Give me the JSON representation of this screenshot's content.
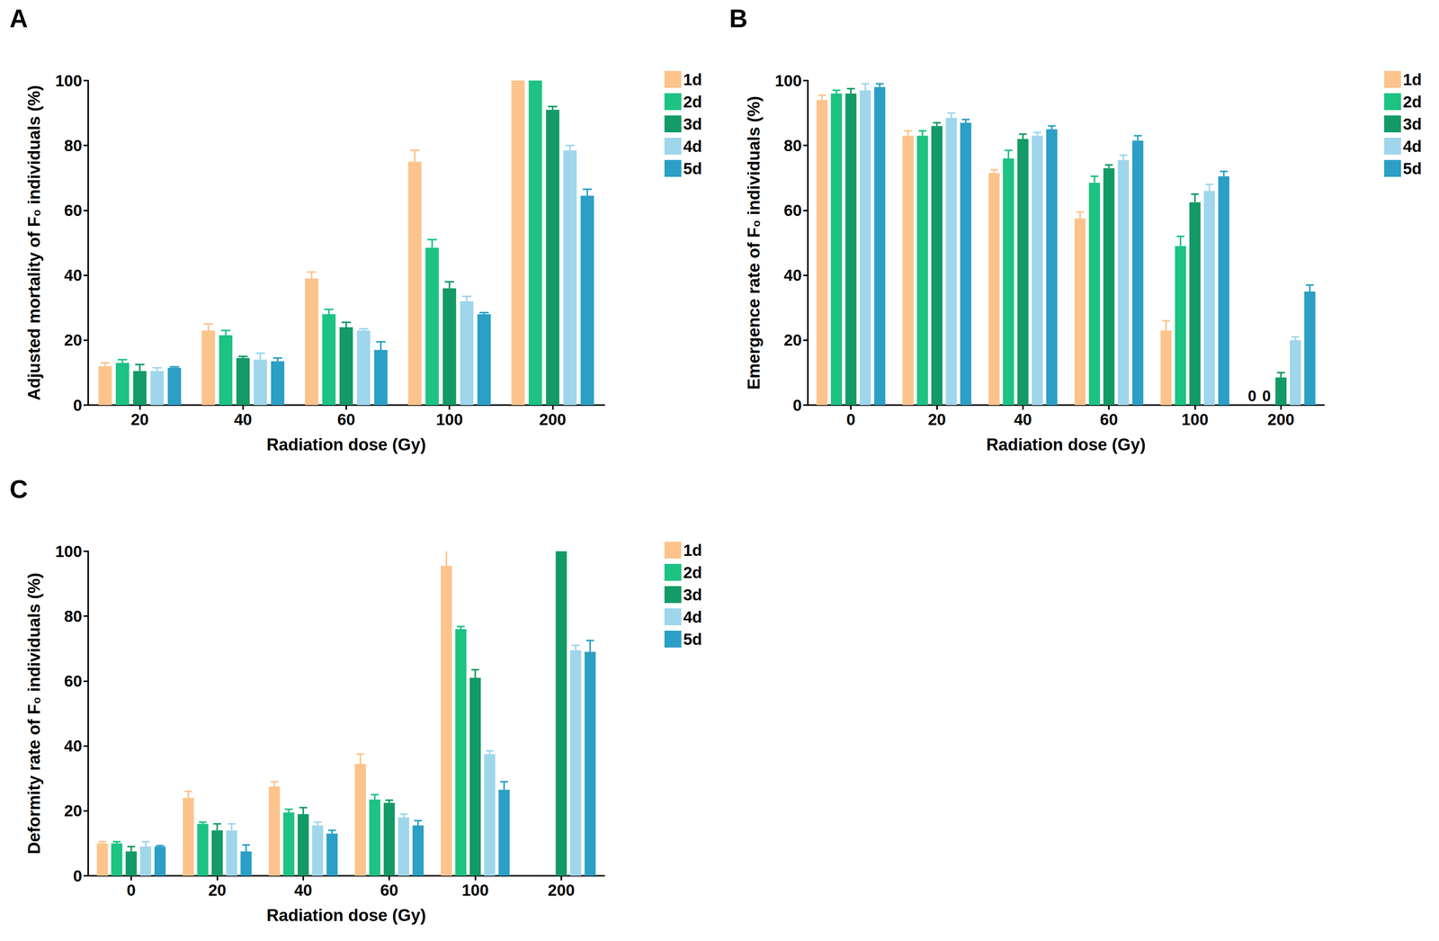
{
  "chart_data": [
    {
      "type": "bar",
      "title": "A",
      "x_label": "Radiation dose (Gy)",
      "y_label": "Adjusted mortality of F₀ individuals (%)",
      "categories": [
        "20",
        "40",
        "60",
        "100",
        "200"
      ],
      "series": [
        {
          "name": "1d",
          "color": "#fcc48c",
          "values": [
            12,
            23,
            39,
            75,
            100
          ],
          "errors": [
            1,
            2,
            2,
            3.5,
            0
          ]
        },
        {
          "name": "2d",
          "color": "#1cc383",
          "values": [
            13,
            21.5,
            28,
            48.5,
            100
          ],
          "errors": [
            1,
            1.5,
            1.5,
            2.5,
            0
          ]
        },
        {
          "name": "3d",
          "color": "#139a66",
          "values": [
            10.5,
            14.5,
            24,
            36,
            91
          ],
          "errors": [
            2,
            0.5,
            1.5,
            2,
            1
          ]
        },
        {
          "name": "4d",
          "color": "#9fd6ec",
          "values": [
            10.5,
            14,
            23,
            32,
            78.5
          ],
          "errors": [
            1,
            2,
            0.5,
            1.5,
            1.5
          ]
        },
        {
          "name": "5d",
          "color": "#2b9fc6",
          "values": [
            11.5,
            13.5,
            17,
            28,
            64.5
          ],
          "errors": [
            0.3,
            1,
            2.5,
            0.5,
            2
          ]
        }
      ],
      "ylim": [
        0,
        100
      ],
      "yticks": [
        0,
        20,
        40,
        60,
        80,
        100
      ],
      "grid": false,
      "legend": "upper right"
    },
    {
      "type": "bar",
      "title": "B",
      "x_label": "Radiation dose (Gy)",
      "y_label": "Emergence rate of F₀ individuals (%)",
      "categories": [
        "0",
        "20",
        "40",
        "60",
        "100",
        "200"
      ],
      "series": [
        {
          "name": "1d",
          "color": "#fcc48c",
          "values": [
            94,
            83,
            71.5,
            57.5,
            23,
            0
          ],
          "errors": [
            1.5,
            1.5,
            1,
            2,
            3,
            0
          ]
        },
        {
          "name": "2d",
          "color": "#1cc383",
          "values": [
            96,
            83,
            76,
            68.5,
            49,
            0
          ],
          "errors": [
            1,
            1.5,
            2.5,
            2,
            3,
            0
          ]
        },
        {
          "name": "3d",
          "color": "#139a66",
          "values": [
            96,
            86,
            82,
            73,
            62.5,
            8.5
          ],
          "errors": [
            1.5,
            1,
            1.5,
            1,
            2.5,
            1.5
          ]
        },
        {
          "name": "4d",
          "color": "#9fd6ec",
          "values": [
            97,
            88.5,
            83,
            75.5,
            66,
            20
          ],
          "errors": [
            2,
            1.5,
            1,
            1.5,
            2,
            1
          ]
        },
        {
          "name": "5d",
          "color": "#2b9fc6",
          "values": [
            98,
            87,
            85,
            81.5,
            70.5,
            35
          ],
          "errors": [
            1,
            1,
            1,
            1.5,
            1.5,
            2
          ]
        }
      ],
      "annotations": [
        {
          "text": "0",
          "series": "1d",
          "category": "200"
        },
        {
          "text": "0",
          "series": "2d",
          "category": "200"
        }
      ],
      "ylim": [
        0,
        100
      ],
      "yticks": [
        0,
        20,
        40,
        60,
        80,
        100
      ],
      "grid": false,
      "legend": "upper right"
    },
    {
      "type": "bar",
      "title": "C",
      "x_label": "Radiation dose (Gy)",
      "y_label": "Deformity rate of F₀ individuals (%)",
      "categories": [
        "0",
        "20",
        "40",
        "60",
        "100",
        "200"
      ],
      "series": [
        {
          "name": "1d",
          "color": "#fcc48c",
          "values": [
            10,
            24,
            27.5,
            34.5,
            95.5,
            null
          ],
          "errors": [
            0.5,
            2,
            1.5,
            3,
            5,
            null
          ]
        },
        {
          "name": "2d",
          "color": "#1cc383",
          "values": [
            10,
            16,
            19.5,
            23.5,
            76,
            null
          ],
          "errors": [
            0.5,
            0.5,
            1,
            1.5,
            0.8,
            null
          ]
        },
        {
          "name": "3d",
          "color": "#139a66",
          "values": [
            7.5,
            14,
            19,
            22.5,
            61,
            100
          ],
          "errors": [
            1.5,
            2,
            2,
            0.8,
            2.5,
            0
          ]
        },
        {
          "name": "4d",
          "color": "#9fd6ec",
          "values": [
            9,
            14,
            15.5,
            18,
            37.5,
            69.5
          ],
          "errors": [
            1.5,
            2,
            1,
            1,
            1,
            1.5
          ]
        },
        {
          "name": "5d",
          "color": "#2b9fc6",
          "values": [
            9,
            7.5,
            13,
            15.5,
            26.5,
            69
          ],
          "errors": [
            0.3,
            2,
            1,
            1.5,
            2.5,
            3.5
          ]
        }
      ],
      "ylim": [
        0,
        100
      ],
      "yticks": [
        0,
        20,
        40,
        60,
        80,
        100
      ],
      "grid": false,
      "legend": "upper right"
    }
  ]
}
